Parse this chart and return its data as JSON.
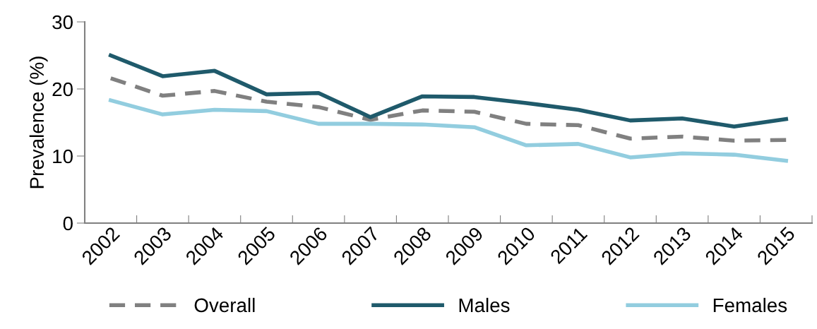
{
  "chart_data": {
    "type": "line",
    "ylabel": "Prevalence (%)",
    "categories": [
      "2002",
      "2003",
      "2004",
      "2005",
      "2006",
      "2007",
      "2008",
      "2009",
      "2010",
      "2011",
      "2012",
      "2013",
      "2014",
      "2015"
    ],
    "series": [
      {
        "name": "Overall",
        "color": "#808080",
        "line_style": "dashed",
        "values": [
          21.6,
          19.0,
          19.7,
          18.1,
          17.3,
          15.4,
          16.8,
          16.6,
          14.8,
          14.6,
          12.6,
          12.9,
          12.3,
          12.4
        ]
      },
      {
        "name": "Males",
        "color": "#1f5a6b",
        "line_style": "solid",
        "values": [
          25.0,
          21.9,
          22.7,
          19.2,
          19.4,
          15.8,
          18.9,
          18.8,
          17.9,
          16.9,
          15.3,
          15.6,
          14.4,
          15.5
        ]
      },
      {
        "name": "Females",
        "color": "#92cddf",
        "line_style": "solid",
        "values": [
          18.3,
          16.2,
          16.9,
          16.7,
          14.8,
          14.8,
          14.7,
          14.3,
          11.6,
          11.8,
          9.8,
          10.4,
          10.2,
          9.3
        ]
      }
    ],
    "ylim": [
      0,
      30
    ],
    "yticks": [
      0,
      10,
      20,
      30
    ],
    "grid": false,
    "legend": "bottom",
    "marker": "none"
  }
}
